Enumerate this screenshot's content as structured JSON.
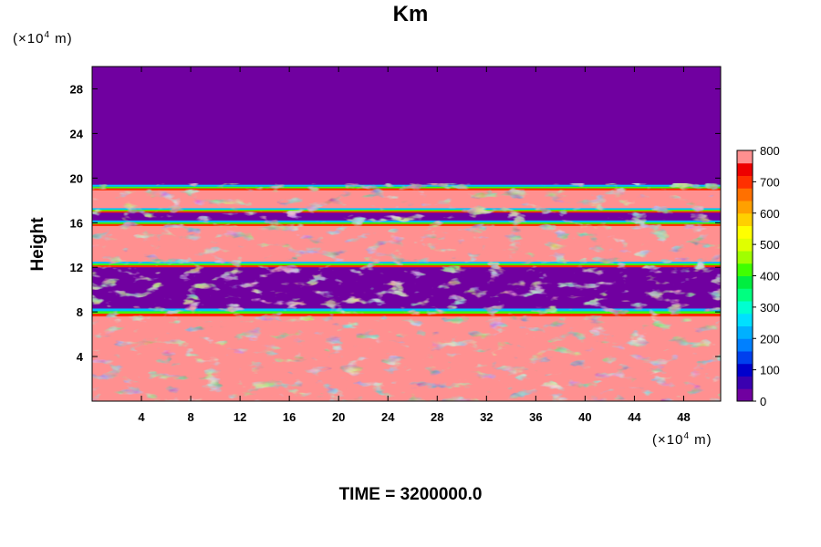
{
  "chart_data": {
    "type": "heatmap",
    "title": "Km",
    "ylabel": "Height",
    "xlabel": "",
    "x_unit": {
      "prefix": "(×10",
      "exp": "4",
      "suffix": " m)"
    },
    "y_unit": {
      "prefix": "(×10",
      "exp": "4",
      "suffix": " m)"
    },
    "xlim": [
      0,
      51
    ],
    "ylim": [
      0,
      30
    ],
    "x_ticks": [
      4,
      8,
      12,
      16,
      20,
      24,
      28,
      32,
      36,
      40,
      44,
      48
    ],
    "y_ticks": [
      4,
      8,
      12,
      16,
      20,
      24,
      28
    ],
    "colorbar": {
      "min": 0,
      "max": 800,
      "ticks": [
        0,
        100,
        200,
        300,
        400,
        500,
        600,
        700,
        800
      ],
      "colors": [
        "#7000a0",
        "#3a00b0",
        "#0000cc",
        "#0040ee",
        "#0080ff",
        "#00b0ff",
        "#00e0ff",
        "#00ffd0",
        "#00ff80",
        "#00ee40",
        "#40ff00",
        "#a0ff00",
        "#e0ff00",
        "#ffff00",
        "#ffd000",
        "#ffa000",
        "#ff7000",
        "#ff3000",
        "#ee0000",
        "#ff9090"
      ]
    },
    "regions": [
      {
        "value": 800,
        "y_range": [
          0,
          7.6
        ],
        "description": ""
      },
      {
        "value": 0,
        "y_range": [
          8.3,
          12.2
        ]
      },
      {
        "value": 800,
        "y_range": [
          12.2,
          15.8
        ]
      },
      {
        "value": 0,
        "y_range": [
          15.8,
          17.0
        ]
      },
      {
        "value": 800,
        "y_range": [
          17.0,
          19.0
        ]
      },
      {
        "value": 0,
        "y_range": [
          19.3,
          30
        ]
      }
    ]
  },
  "footer": {
    "time_label": "TIME = 3200000.0"
  }
}
